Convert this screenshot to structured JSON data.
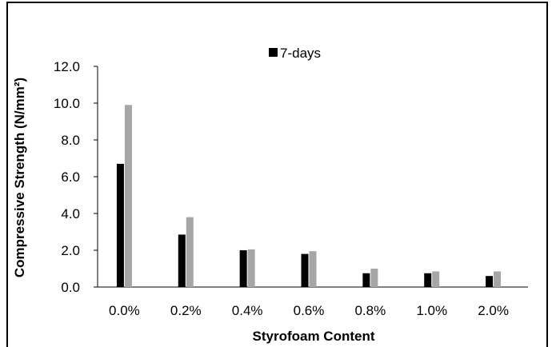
{
  "chart_data": {
    "type": "bar",
    "title": "",
    "xlabel": "Styrofoam Content",
    "ylabel": "Compressive Strength (N/mm²)",
    "ylim": [
      0,
      12
    ],
    "yticks": [
      "0.0",
      "2.0",
      "4.0",
      "6.0",
      "8.0",
      "10.0",
      "12.0"
    ],
    "categories": [
      "0.0%",
      "0.2%",
      "0.4%",
      "0.6%",
      "0.8%",
      "1.0%",
      "2.0%"
    ],
    "grid": false,
    "legend": {
      "placement": "top-center",
      "entries": [
        "7-days"
      ]
    },
    "series": [
      {
        "name": "7-days",
        "color": "#000000",
        "values": [
          6.7,
          2.85,
          2.0,
          1.8,
          0.75,
          0.75,
          0.6
        ]
      },
      {
        "color": "#a6a6a6",
        "values": [
          9.9,
          3.8,
          2.05,
          1.95,
          1.0,
          0.85,
          0.85
        ]
      }
    ]
  }
}
